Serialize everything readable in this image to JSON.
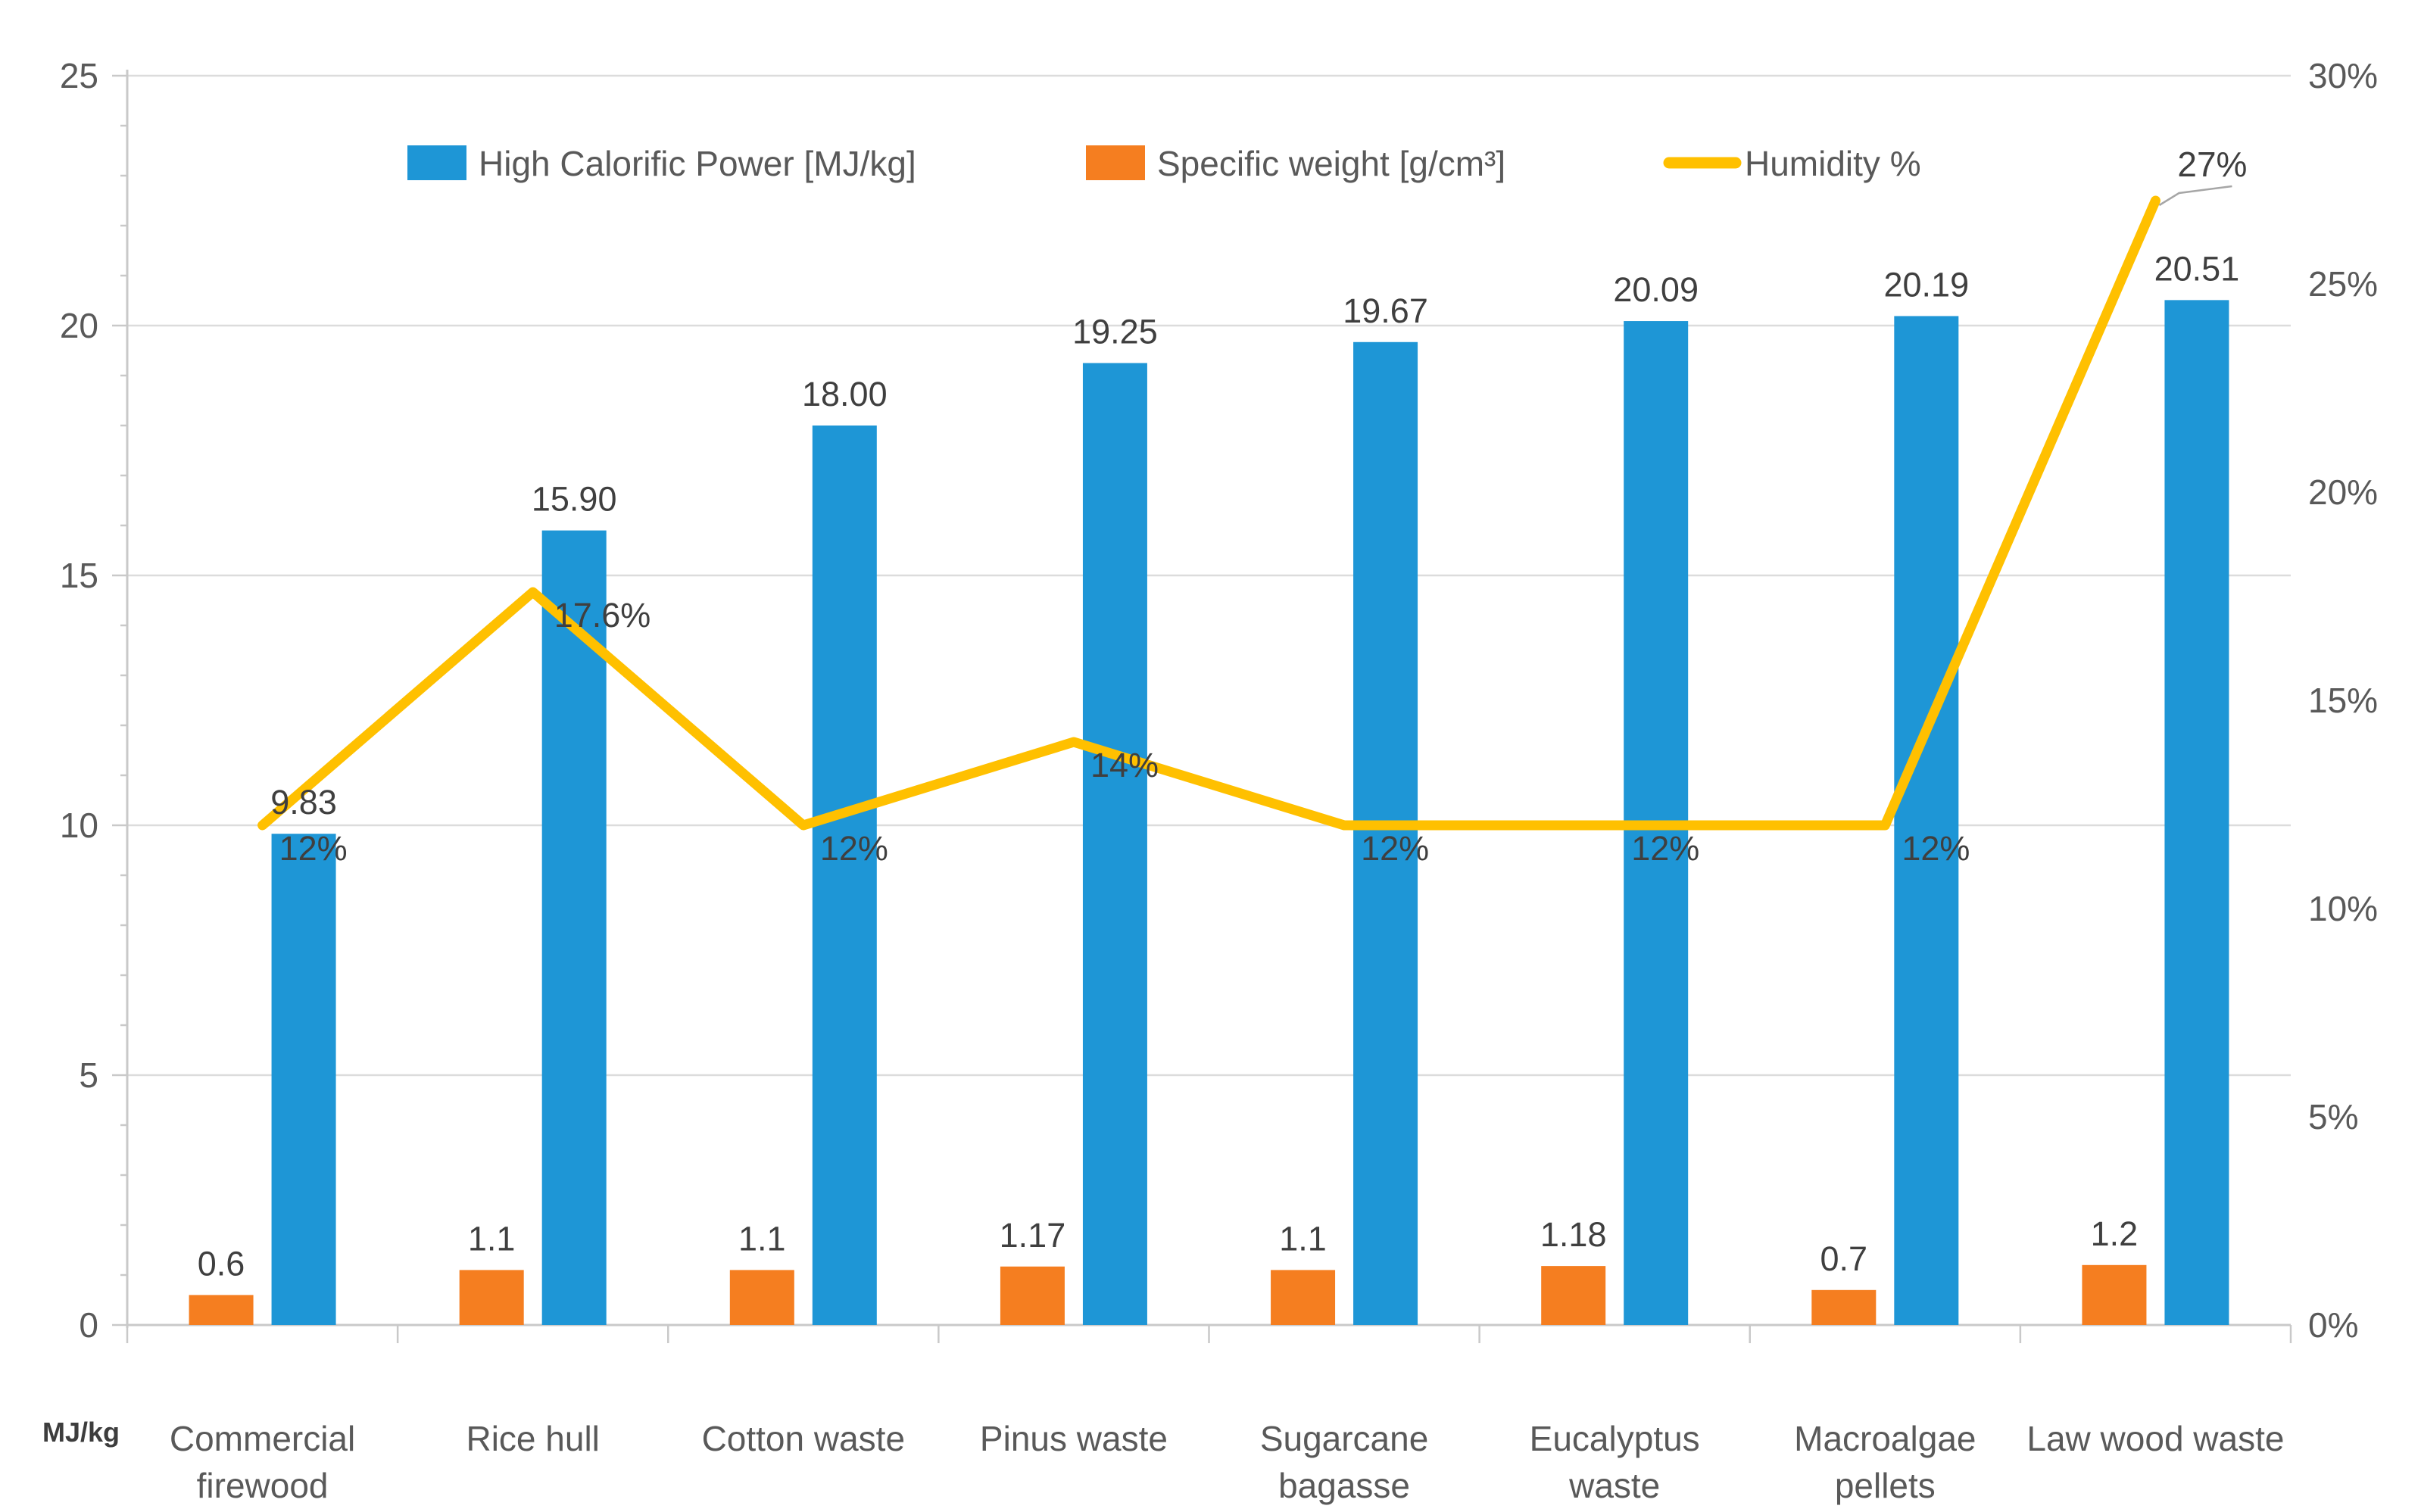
{
  "chart_data": {
    "type": "bar",
    "subtype": "bar-line-combo",
    "title": "",
    "categories": [
      "Commercial firewood",
      "Rice hull",
      "Cotton waste",
      "Pinus waste",
      "Sugarcane bagasse",
      "Eucalyptus waste",
      "Macroalgae pellets",
      "Law wood waste"
    ],
    "category_lines": [
      [
        "Commercial",
        "firewood"
      ],
      [
        "Rice hull"
      ],
      [
        "Cotton waste"
      ],
      [
        "Pinus waste"
      ],
      [
        "Sugarcane",
        "bagasse"
      ],
      [
        "Eucalyptus",
        "waste"
      ],
      [
        "Macroalgae",
        "pellets"
      ],
      [
        "Law wood waste"
      ]
    ],
    "series": [
      {
        "name": "High Calorific  Power [MJ/kg]",
        "type": "bar",
        "axis": "left",
        "color": "#1E96D6",
        "values": [
          9.83,
          15.9,
          18.0,
          19.25,
          19.67,
          20.09,
          20.19,
          20.51
        ],
        "labels": [
          "9.83",
          "15.90",
          "18.00",
          "19.25",
          "19.67",
          "20.09",
          "20.19",
          "20.51"
        ]
      },
      {
        "name": "Specific weight [g/cm³]",
        "type": "bar",
        "axis": "left",
        "color": "#F57E20",
        "values": [
          0.6,
          1.1,
          1.1,
          1.17,
          1.1,
          1.18,
          0.7,
          1.2
        ],
        "labels": [
          "0.6",
          "1.1",
          "1.1",
          "1.17",
          "1.1",
          "1.18",
          "0.7",
          "1.2"
        ]
      },
      {
        "name": "Humidity %",
        "type": "line",
        "axis": "right",
        "color": "#FFC000",
        "values": [
          12,
          17.6,
          12,
          14,
          12,
          12,
          12,
          27
        ],
        "labels": [
          "12%",
          "17.6%",
          "12%",
          "14%",
          "12%",
          "12%",
          "12%",
          "27%"
        ]
      }
    ],
    "left_axis": {
      "min": 0,
      "max": 25,
      "ticks": [
        "0",
        "5",
        "10",
        "15",
        "20",
        "25"
      ],
      "unit_label": "MJ/kg"
    },
    "right_axis": {
      "min": 0,
      "max": 30,
      "ticks": [
        "0%",
        "5%",
        "10%",
        "15%",
        "20%",
        "25%",
        "30%"
      ]
    },
    "legend_position": "top",
    "grid": true,
    "colors": {
      "gridline": "#DCDCDC",
      "axis_line": "#C9C9C9",
      "tick_text": "#595959",
      "label_text": "#3F3F3F",
      "leader_line": "#A6A6A6"
    }
  }
}
